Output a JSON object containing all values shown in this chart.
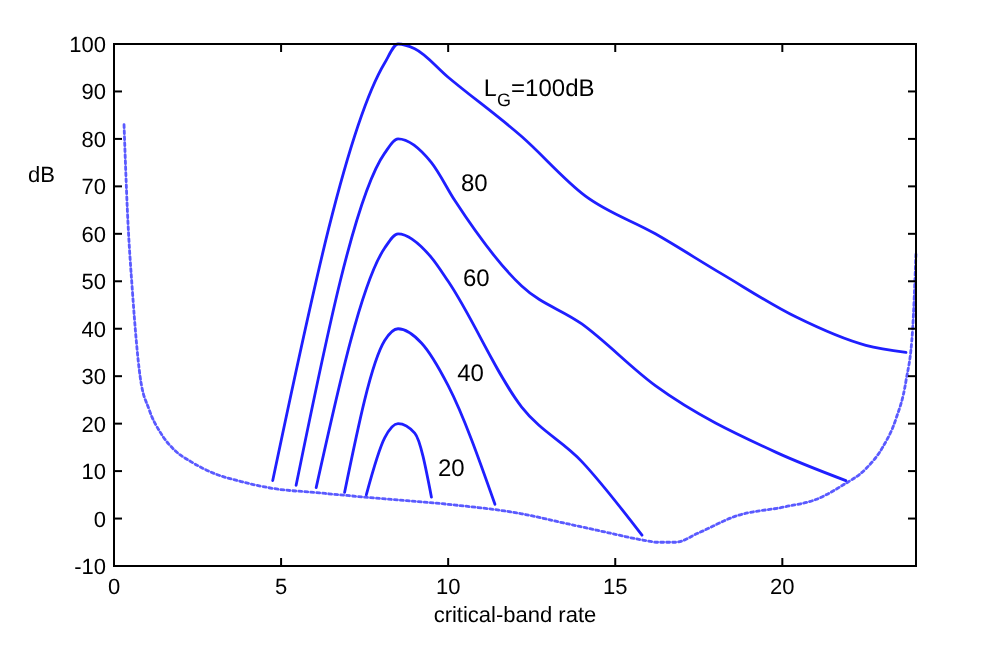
{
  "chart_data": {
    "type": "line",
    "xlabel": "critical-band rate",
    "ylabel": "dB",
    "xlim": [
      0,
      24
    ],
    "ylim": [
      -10,
      100
    ],
    "xticks": [
      0,
      5,
      10,
      15,
      20
    ],
    "yticks": [
      -10,
      0,
      10,
      20,
      30,
      40,
      50,
      60,
      70,
      80,
      90,
      100
    ],
    "grid": false,
    "marker": "none",
    "series": [
      {
        "color": "#5a5aff",
        "line_style": "dotted",
        "x": [
          0.3,
          0.4,
          0.55,
          0.78,
          1.05,
          1.4,
          1.8,
          2.3,
          3.0,
          3.8,
          4.8,
          6,
          8,
          10,
          12.2,
          13.5,
          14.8,
          15.8,
          16.3,
          16.8,
          17.5,
          18.6,
          20.1,
          21.0,
          21.8,
          22.5,
          23.0,
          23.4,
          23.7,
          23.9,
          24
        ],
        "values": [
          83,
          65,
          48,
          30,
          23,
          18,
          14.5,
          12,
          9.5,
          7.8,
          6.3,
          5.5,
          4.2,
          3,
          1,
          -1,
          -3,
          -4.5,
          -5,
          -5,
          -3,
          0.5,
          2.5,
          4,
          7,
          10.5,
          15,
          21,
          29,
          40,
          56
        ]
      },
      {
        "name": "L$_{G}$=100dB",
        "color": "#1f1fff",
        "line_style": "solid",
        "x": [
          4.75,
          8.1,
          8.5,
          9,
          10,
          12.2,
          14.1,
          16.2,
          18.2,
          20.4,
          22.5,
          23.7
        ],
        "values": [
          8,
          96,
          100,
          99,
          93,
          80.5,
          68,
          60,
          51.5,
          42.5,
          36.5,
          35
        ]
      },
      {
        "name": "80",
        "color": "#1f1fff",
        "line_style": "solid",
        "x": [
          5.45,
          8.1,
          8.5,
          9.5,
          10.2,
          12.2,
          14,
          16.2,
          19.8,
          21.9
        ],
        "values": [
          7,
          77,
          80,
          75,
          67,
          49,
          41,
          28,
          14,
          8
        ]
      },
      {
        "name": "60",
        "color": "#1f1fff",
        "line_style": "solid",
        "x": [
          6.05,
          8.1,
          8.5,
          9.5,
          10,
          12.2,
          14,
          15.8
        ],
        "values": [
          6.5,
          57,
          60,
          55,
          50,
          23.5,
          12,
          -3.5
        ]
      },
      {
        "name": "40",
        "color": "#1f1fff",
        "line_style": "solid",
        "x": [
          6.9,
          8.1,
          8.5,
          9.2,
          10,
          11.4
        ],
        "values": [
          5.5,
          37.5,
          40,
          37,
          28,
          3
        ]
      },
      {
        "name": "20",
        "color": "#1f1fff",
        "line_style": "solid",
        "x": [
          7.55,
          8.1,
          8.5,
          9,
          9.5
        ],
        "values": [
          5,
          17,
          20,
          18,
          4.5
        ]
      }
    ]
  }
}
